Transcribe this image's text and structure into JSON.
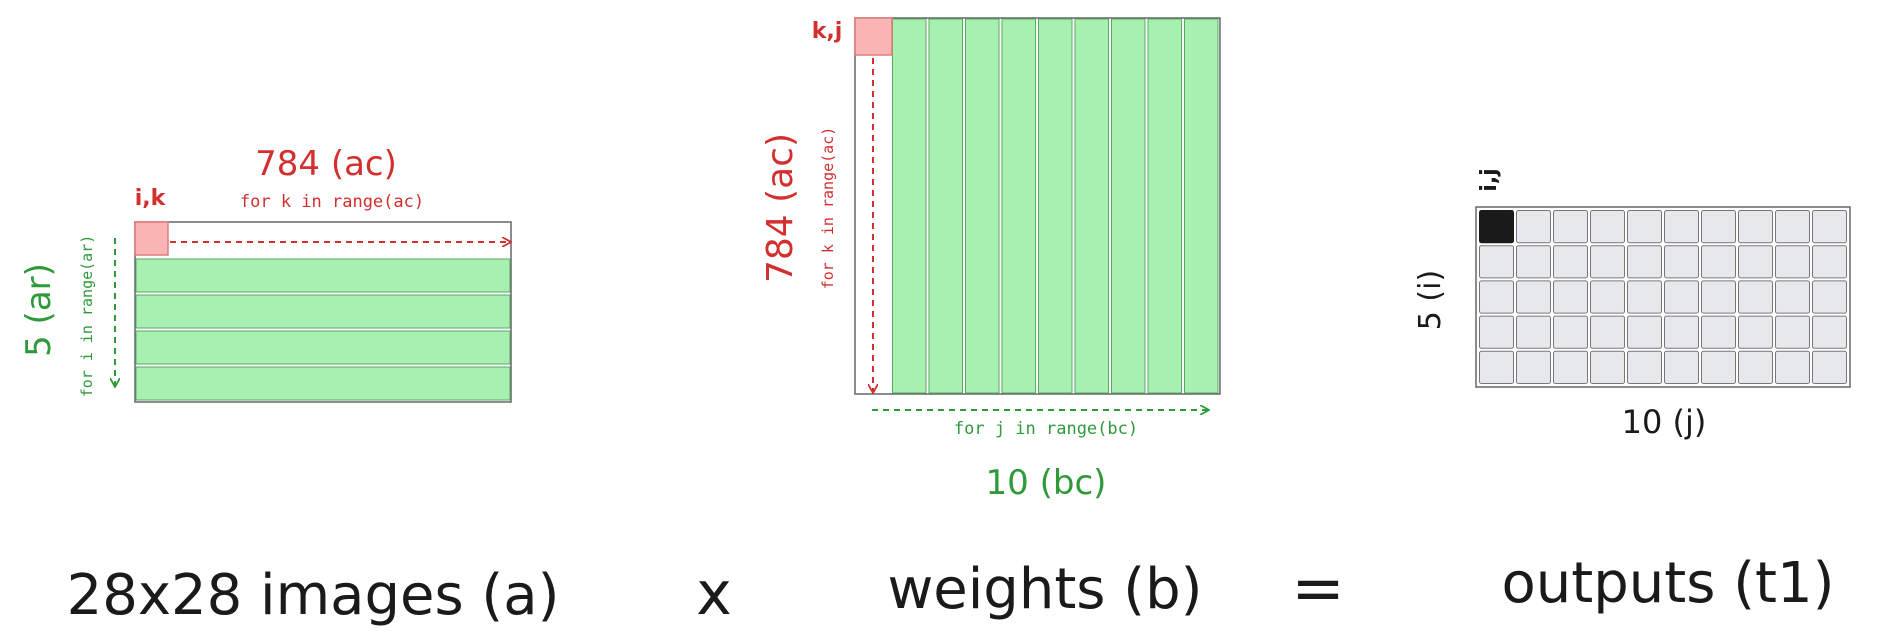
{
  "colors": {
    "red": "#d32f2f",
    "green": "#2e9a3a",
    "green_fill": "#a8f0b0",
    "green_stroke": "#5aa864",
    "pink_fill": "#f9b4b4",
    "pink_stroke": "#e07b7b",
    "gray_cell": "#e6e8ec",
    "gray_stroke": "#777777",
    "outline": "#666666",
    "black": "#1a1a1a"
  },
  "matrix_a": {
    "cols_label": "784 (ac)",
    "loop_k": "for k in range(ac)",
    "cell_label": "i,k",
    "rows_label": "5 (ar)",
    "loop_i": "for i in range(ar)",
    "row_count": 5
  },
  "matrix_b": {
    "rows_label": "784 (ac)",
    "loop_k": "for k in range(ac)",
    "cell_label": "k,j",
    "cols_label": "10 (bc)",
    "loop_j": "for j in range(bc)",
    "col_count": 10
  },
  "matrix_t1": {
    "cell_label": "i,j",
    "rows_label": "5 (i)",
    "cols_label": "10 (j)",
    "rows": 5,
    "cols": 10
  },
  "equation": {
    "a": "28x28 images (a)",
    "times": "x",
    "b": "weights (b)",
    "equals": "=",
    "t1": "outputs (t1)"
  }
}
